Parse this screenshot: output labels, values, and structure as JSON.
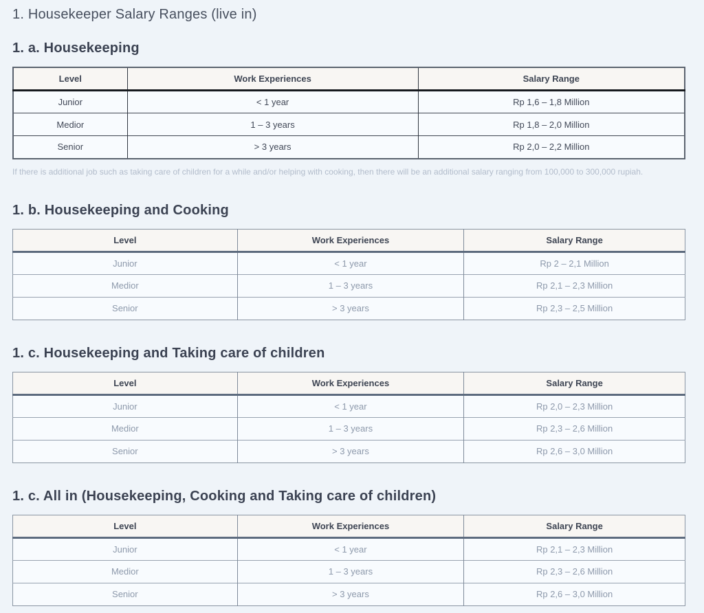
{
  "page": {
    "title": "1. Housekeeper Salary Ranges (live in)"
  },
  "columns": [
    "Level",
    "Work Experiences",
    "Salary Range"
  ],
  "sections": [
    {
      "heading": "1. a. Housekeeping",
      "style": "dark",
      "rows": [
        {
          "level": "Junior",
          "experience": "< 1 year",
          "salary": "Rp 1,6 – 1,8 Million"
        },
        {
          "level": "Medior",
          "experience": "1 – 3 years",
          "salary": "Rp 1,8 – 2,0 Million"
        },
        {
          "level": "Senior",
          "experience": "> 3 years",
          "salary": "Rp 2,0 – 2,2 Million"
        }
      ],
      "note": "If there is additional job such as taking care of children for a while and/or helping with cooking, then there will be an additional salary ranging from 100,000 to 300,000 rupiah."
    },
    {
      "heading": "1. b. Housekeeping and Cooking",
      "style": "light",
      "rows": [
        {
          "level": "Junior",
          "experience": "< 1 year",
          "salary": "Rp 2 – 2,1 Million"
        },
        {
          "level": "Medior",
          "experience": "1 – 3 years",
          "salary": "Rp 2,1 – 2,3 Million"
        },
        {
          "level": "Senior",
          "experience": "> 3 years",
          "salary": "Rp 2,3 – 2,5 Million"
        }
      ],
      "note": ""
    },
    {
      "heading": "1. c. Housekeeping and Taking care of children",
      "style": "light",
      "rows": [
        {
          "level": "Junior",
          "experience": "< 1 year",
          "salary": "Rp 2,0 – 2,3 Million"
        },
        {
          "level": "Medior",
          "experience": "1 – 3 years",
          "salary": "Rp 2,3 – 2,6 Million"
        },
        {
          "level": "Senior",
          "experience": "> 3 years",
          "salary": "Rp 2,6 – 3,0 Million"
        }
      ],
      "note": ""
    },
    {
      "heading": "1. c. All in (Housekeeping, Cooking and Taking care of children)",
      "style": "light",
      "rows": [
        {
          "level": "Junior",
          "experience": "< 1 year",
          "salary": "Rp 2,1 – 2,3 Million"
        },
        {
          "level": "Medior",
          "experience": "1 – 3 years",
          "salary": "Rp 2,3 – 2,6 Million"
        },
        {
          "level": "Senior",
          "experience": "> 3 years",
          "salary": "Rp 2,6 – 3,0 Million"
        }
      ],
      "note": ""
    }
  ],
  "colors": {
    "page_background": "#eff4f9",
    "heading_text": "#3b4252",
    "title_text": "#474f5e",
    "table_header_background": "#f8f6f3",
    "table_row_background": "#f8fbfe",
    "dark_table_border": "#30363f",
    "light_table_border": "#8a95a2",
    "light_table_text": "#8d99ab",
    "note_text": "#b2bccb"
  }
}
